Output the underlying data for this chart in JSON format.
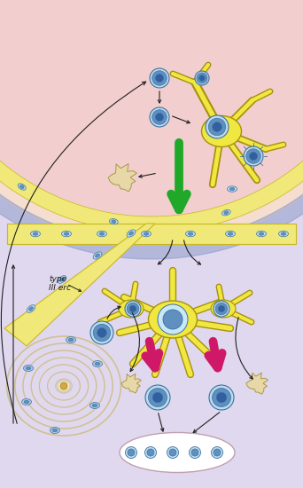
{
  "bg_outer": "#f2cece",
  "bg_inner": "#e0d8ee",
  "tissue_pink": "#f5ddd0",
  "tissue_yellow": "#f0e878",
  "tissue_yellow_border": "#c8b820",
  "tissue_blue": "#9090c0",
  "cell_light": "#b8ddf0",
  "cell_nucleus": "#6090c0",
  "cell_border": "#4070a0",
  "cell_outer_ring": "#88c8e0",
  "dendritic_fill": "#f0e840",
  "dendritic_border": "#a89010",
  "arrow_green": "#20a828",
  "arrow_red": "#d01868",
  "arrow_black": "#202020",
  "blob_fill": "#e8d8a8",
  "blob_border": "#a89848",
  "spiral_line": "#d0c090",
  "spiral_center": "#d4a840",
  "spiral_cell": "#8090b8",
  "lymph_fill": "#ffffff",
  "lymph_border": "#c0a0b0",
  "type_erc_text": "type\nIII erc",
  "figsize": [
    3.42,
    5.5
  ],
  "dpi": 100
}
